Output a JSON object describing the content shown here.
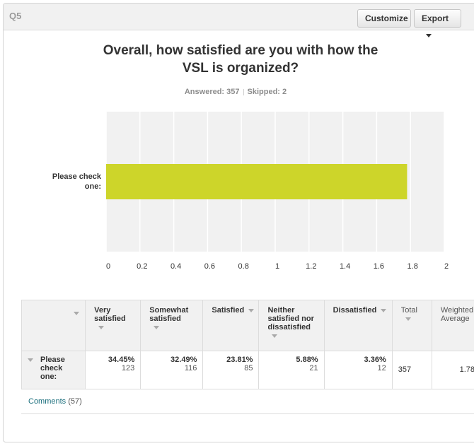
{
  "header": {
    "question_number": "Q5",
    "customize_label": "Customize",
    "export_label": "Export"
  },
  "question": {
    "title_line1": "Overall, how satisfied are you with how the",
    "title_line2": "VSL is organized?",
    "answered": "Answered: 357",
    "skipped": "Skipped: 2"
  },
  "chart_data": {
    "type": "bar",
    "orientation": "horizontal",
    "categories": [
      "Please check one:"
    ],
    "category_lines": [
      "Please check",
      "one:"
    ],
    "values": [
      1.78
    ],
    "xlim": [
      0,
      2
    ],
    "xticks": [
      "0",
      "0.2",
      "0.4",
      "0.6",
      "0.8",
      "1",
      "1.2",
      "1.4",
      "1.6",
      "1.8",
      "2"
    ],
    "grid": true,
    "bar_color": "#cdd52a",
    "title": "",
    "xlabel": "",
    "ylabel": ""
  },
  "table": {
    "headers": [
      "Very satisfied",
      "Somewhat satisfied",
      "Satisfied",
      "Neither satisfied nor dissatisfied",
      "Dissatisfied",
      "Total",
      "Weighted Average"
    ],
    "row": {
      "label": "Please check one:",
      "cells": [
        {
          "pct": "34.45%",
          "count": "123"
        },
        {
          "pct": "32.49%",
          "count": "116"
        },
        {
          "pct": "23.81%",
          "count": "85"
        },
        {
          "pct": "5.88%",
          "count": "21"
        },
        {
          "pct": "3.36%",
          "count": "12"
        }
      ],
      "total": "357",
      "weighted_average": "1.78"
    }
  },
  "comments": {
    "link_label": "Comments",
    "count": "(57)"
  },
  "colors": {
    "bar": "#cdd52a",
    "link": "#1a6e7c"
  }
}
